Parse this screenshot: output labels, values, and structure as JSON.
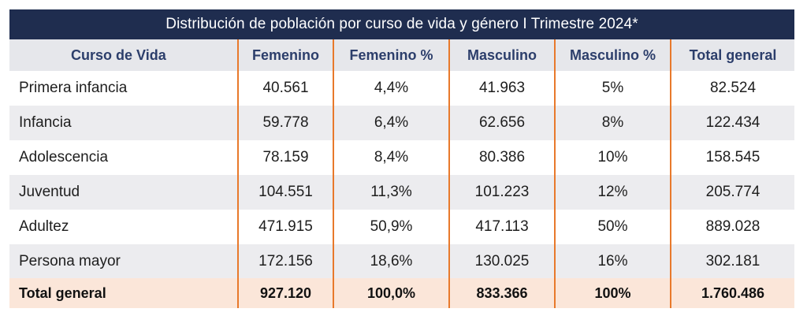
{
  "title": "Distribución de población por curso de vida y género I Trimestre 2024*",
  "columns": [
    "Curso de Vida",
    "Femenino",
    "Femenino %",
    "Masculino",
    "Masculino %",
    "Total general"
  ],
  "rows": [
    [
      "Primera infancia",
      "40.561",
      "4,4%",
      "41.963",
      "5%",
      "82.524"
    ],
    [
      "Infancia",
      "59.778",
      "6,4%",
      "62.656",
      "8%",
      "122.434"
    ],
    [
      "Adolescencia",
      "78.159",
      "8,4%",
      "80.386",
      "10%",
      "158.545"
    ],
    [
      "Juventud",
      "104.551",
      "11,3%",
      "101.223",
      "12%",
      "205.774"
    ],
    [
      "Adultez",
      "471.915",
      "50,9%",
      "417.113",
      "50%",
      "889.028"
    ],
    [
      "Persona mayor",
      "172.156",
      "18,6%",
      "130.025",
      "16%",
      "302.181"
    ]
  ],
  "total": [
    "Total general",
    "927.120",
    "100,0%",
    "833.366",
    "100%",
    "1.760.486"
  ],
  "colors": {
    "title_bg": "#1f2d4f",
    "header_bg": "#e6e7eb",
    "header_text": "#2c3e6b",
    "divider": "#e8792b",
    "alt_row_bg": "#ececef",
    "total_bg": "#fbe6d9"
  }
}
